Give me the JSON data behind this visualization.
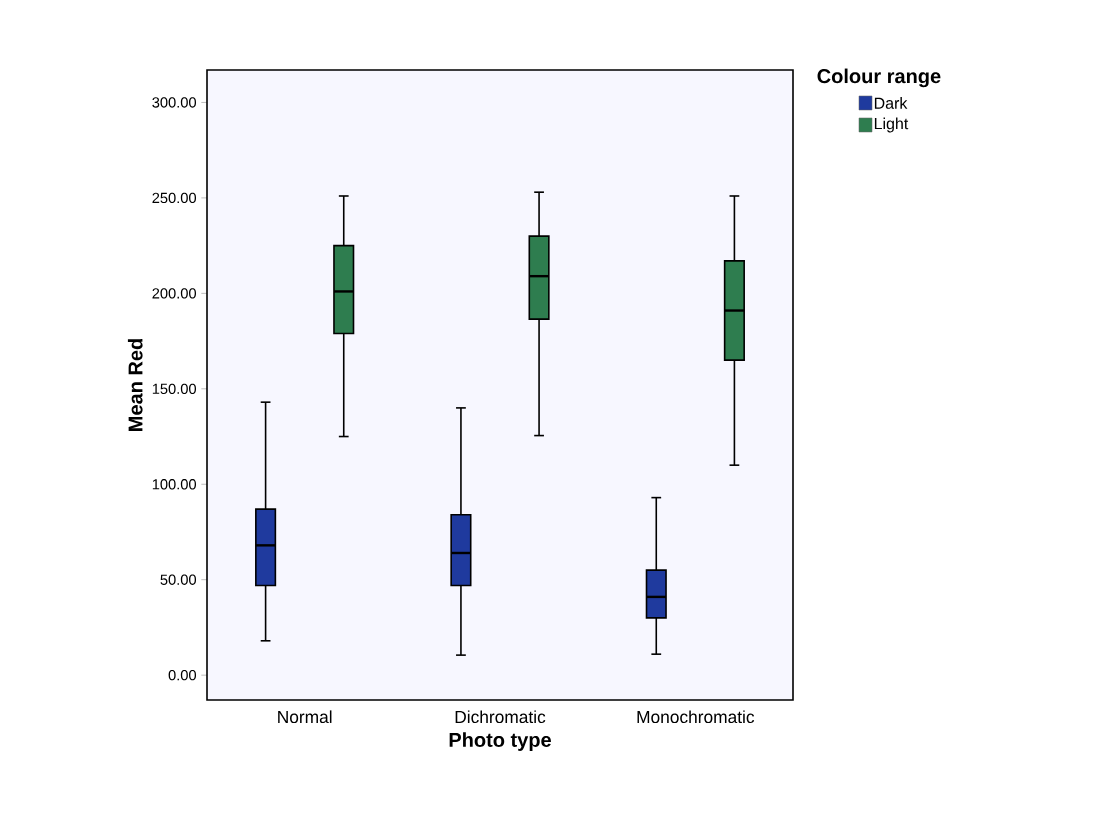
{
  "chart_data": {
    "type": "box",
    "xlabel": "Photo type",
    "ylabel": "Mean Red",
    "legend_title": "Colour range",
    "legend": "top right",
    "grid": false,
    "categories": [
      "Normal",
      "Dichromatic",
      "Monochromatic"
    ],
    "ylim": [
      -13,
      317
    ],
    "yticks": [
      {
        "value": 0,
        "label": "0.00"
      },
      {
        "value": 50,
        "label": "50.00"
      },
      {
        "value": 100,
        "label": "100.00"
      },
      {
        "value": 150,
        "label": "150.00"
      },
      {
        "value": 200,
        "label": "200.00"
      },
      {
        "value": 250,
        "label": "250.00"
      },
      {
        "value": 300,
        "label": "300.00"
      }
    ],
    "series": [
      {
        "name": "Dark",
        "color": "#1f3a9e",
        "boxes": [
          {
            "low": 18,
            "q1": 47,
            "median": 68,
            "q3": 87,
            "high": 143
          },
          {
            "low": 10.5,
            "q1": 47,
            "median": 64,
            "q3": 84,
            "high": 140
          },
          {
            "low": 11,
            "q1": 30,
            "median": 41,
            "q3": 55,
            "high": 93
          }
        ]
      },
      {
        "name": "Light",
        "color": "#2e7d4f",
        "boxes": [
          {
            "low": 125,
            "q1": 179,
            "median": 201,
            "q3": 225,
            "high": 251
          },
          {
            "low": 125.5,
            "q1": 186.5,
            "median": 209,
            "q3": 230,
            "high": 253
          },
          {
            "low": 110,
            "q1": 165,
            "median": 191,
            "q3": 217,
            "high": 251
          }
        ]
      }
    ]
  }
}
